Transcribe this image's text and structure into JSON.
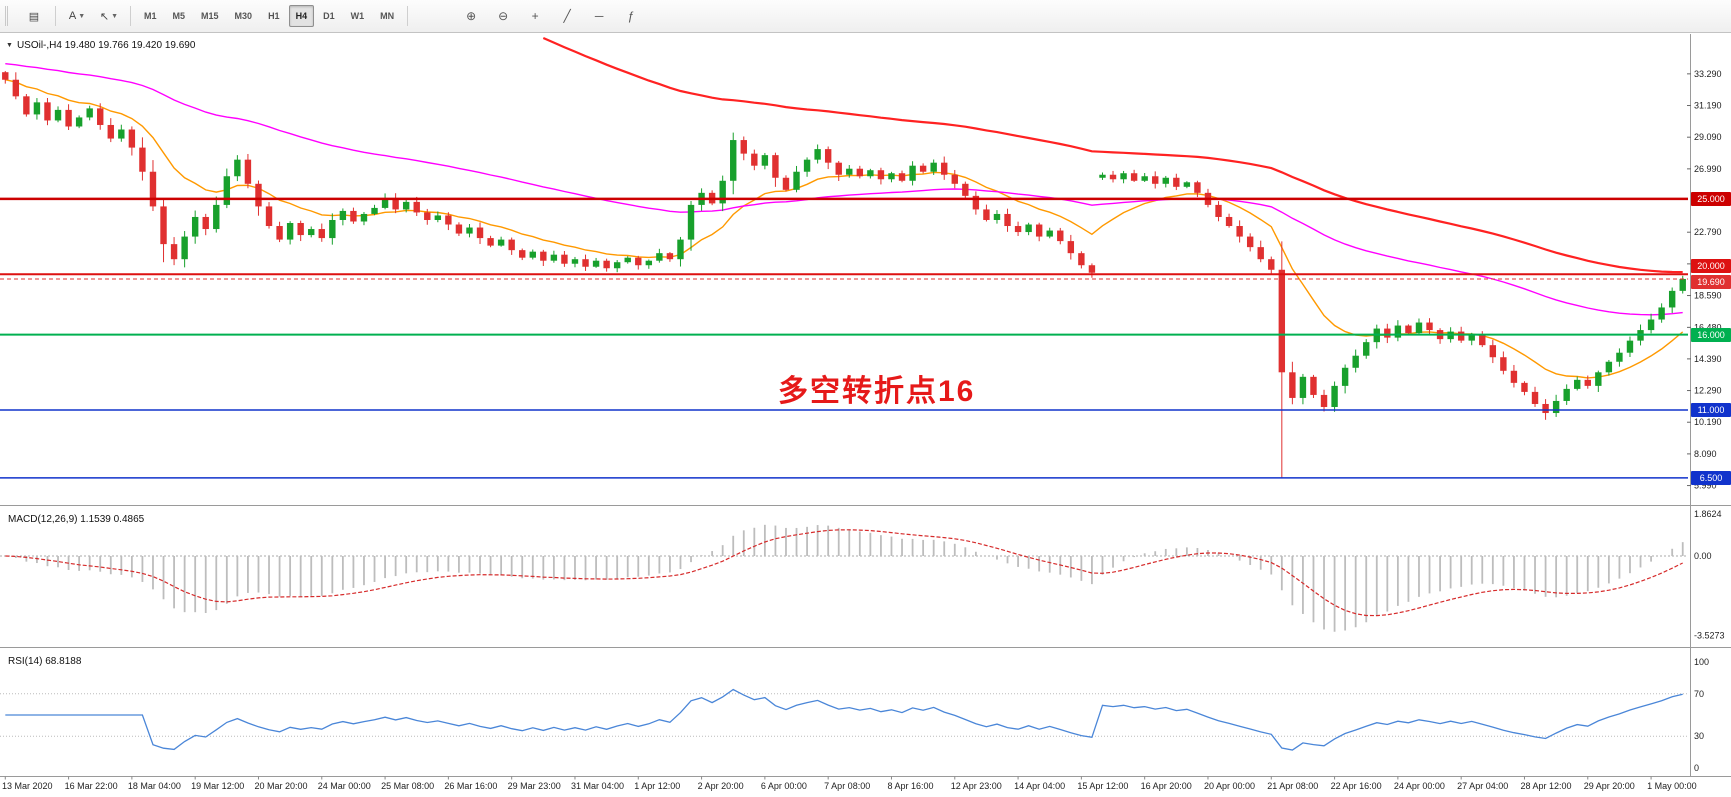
{
  "toolbar": {
    "text_tool_label": "A",
    "timeframes": [
      "M1",
      "M5",
      "M15",
      "M30",
      "H1",
      "H4",
      "D1",
      "W1",
      "MN"
    ],
    "active_timeframe": "H4",
    "icons": [
      {
        "name": "zoom-in-icon",
        "glyph": "⊕"
      },
      {
        "name": "zoom-out-icon",
        "glyph": "⊖"
      },
      {
        "name": "crosshair-icon",
        "glyph": "+"
      },
      {
        "name": "trendline-icon",
        "glyph": "╱"
      },
      {
        "name": "horizontal-line-icon",
        "glyph": "─"
      },
      {
        "name": "indicators-icon",
        "glyph": "ƒ"
      }
    ]
  },
  "chart": {
    "header": "USOil-,H4  19.480 19.766 19.420 19.690",
    "annotation": "多空转折点16",
    "up_color": "#18a02c",
    "down_color": "#e03030",
    "price_ticks": [
      {
        "p": 33.29,
        "t": "33.290"
      },
      {
        "p": 31.19,
        "t": "31.190"
      },
      {
        "p": 29.09,
        "t": "29.090"
      },
      {
        "p": 26.99,
        "t": "26.990"
      },
      {
        "p": 22.79,
        "t": "22.790"
      },
      {
        "p": 20.69,
        "t": "20.690"
      },
      {
        "p": 18.59,
        "t": "18.590"
      },
      {
        "p": 16.48,
        "t": "16.480"
      },
      {
        "p": 14.39,
        "t": "14.390"
      },
      {
        "p": 12.29,
        "t": "12.290"
      },
      {
        "p": 10.19,
        "t": "10.190"
      },
      {
        "p": 8.09,
        "t": "8.090"
      },
      {
        "p": 5.99,
        "t": "5.990"
      }
    ],
    "hlines": [
      {
        "price": 25.0,
        "label": "25.000",
        "color": "#cc0000",
        "width": 2.5
      },
      {
        "price": 20.0,
        "label": "20.000",
        "color": "#dd1111",
        "width": 2
      },
      {
        "price": 16.0,
        "label": "16.000",
        "color": "#00b050",
        "width": 2
      },
      {
        "price": 11.0,
        "label": "11.000",
        "color": "#1133cc",
        "width": 1.5
      },
      {
        "price": 6.5,
        "label": "6.500",
        "color": "#1133cc",
        "width": 1.5
      }
    ],
    "bid_line": {
      "price": 19.69,
      "label": "19.690",
      "color": "#e03030"
    },
    "ma": [
      {
        "name": "ma-fast-orange",
        "period": 13,
        "color": "#ff9900",
        "width": 1.4
      },
      {
        "name": "ma-mid-magenta",
        "period": 60,
        "seed": 34,
        "color": "#ff00ff",
        "width": 1.4
      },
      {
        "name": "ma-slow-red",
        "period": 95,
        "seed": 58,
        "color": "#ff2222",
        "width": 2.2
      }
    ],
    "closes": [
      32.9,
      31.8,
      30.6,
      31.4,
      30.2,
      30.9,
      29.8,
      30.4,
      31.0,
      29.9,
      29.0,
      29.6,
      28.4,
      26.8,
      24.5,
      22.0,
      21.0,
      22.5,
      23.8,
      23.0,
      24.6,
      26.5,
      27.6,
      26.0,
      24.5,
      23.2,
      22.3,
      23.4,
      22.6,
      23.0,
      22.4,
      23.6,
      24.2,
      23.5,
      24.0,
      24.4,
      25.0,
      24.3,
      24.8,
      24.1,
      23.6,
      23.9,
      23.3,
      22.7,
      23.1,
      22.4,
      21.9,
      22.3,
      21.6,
      21.1,
      21.5,
      20.9,
      21.3,
      20.7,
      21.0,
      20.5,
      20.9,
      20.4,
      20.8,
      21.1,
      20.6,
      20.9,
      21.4,
      21.0,
      22.3,
      24.6,
      25.4,
      24.7,
      26.2,
      28.9,
      28.0,
      27.2,
      27.9,
      26.4,
      25.6,
      26.8,
      27.6,
      28.3,
      27.4,
      26.6,
      27.0,
      26.5,
      26.9,
      26.3,
      26.7,
      26.2,
      27.2,
      26.8,
      27.4,
      26.6,
      26.0,
      25.2,
      24.3,
      23.6,
      24.0,
      23.2,
      22.8,
      23.3,
      22.5,
      22.9,
      22.2,
      21.4,
      20.6,
      20.1,
      26.6,
      26.3,
      26.7,
      26.2,
      26.5,
      26.0,
      26.4,
      25.8,
      26.1,
      25.4,
      24.6,
      23.8,
      23.2,
      22.5,
      21.8,
      21.0,
      20.3,
      13.5,
      11.8,
      13.2,
      12.0,
      11.2,
      12.6,
      13.8,
      14.6,
      15.5,
      16.4,
      15.8,
      16.6,
      16.1,
      16.8,
      16.3,
      15.7,
      16.2,
      15.6,
      16.0,
      15.3,
      14.5,
      13.6,
      12.8,
      12.2,
      11.4,
      10.8,
      11.6,
      12.4,
      13.0,
      12.6,
      13.5,
      14.2,
      14.8,
      15.6,
      16.3,
      17.0,
      17.8,
      18.9,
      19.69
    ],
    "open_overrides": {
      "104": 26.4
    },
    "wick_overrides": {
      "15": {
        "low": 20.8
      },
      "22": {
        "high": 27.9
      },
      "121": {
        "low": 6.5
      },
      "125": {
        "low": 10.9
      },
      "146": {
        "low": 10.35
      }
    }
  },
  "macd": {
    "label": "MACD(12,26,9) 1.1539 0.4865",
    "fast": 12,
    "slow": 26,
    "signal": 9,
    "axis": [
      "1.8624",
      "0.00",
      "-3.5273"
    ],
    "hist_color": "#bdbdbd",
    "signal_color": "#d62b2b"
  },
  "rsi": {
    "label": "RSI(14) 68.8188",
    "period": 14,
    "axis": [
      {
        "v": 100,
        "t": "100"
      },
      {
        "v": 70,
        "t": "70"
      },
      {
        "v": 30,
        "t": "30"
      },
      {
        "v": 0,
        "t": "0"
      }
    ],
    "levels": [
      70,
      30
    ],
    "color": "#4a86d8"
  },
  "time_axis": {
    "labels": [
      "13 Mar 2020",
      "16 Mar 22:00",
      "18 Mar 04:00",
      "19 Mar 12:00",
      "20 Mar 20:00",
      "24 Mar 00:00",
      "25 Mar 08:00",
      "26 Mar 16:00",
      "29 Mar 23:00",
      "31 Mar 04:00",
      "1 Apr 12:00",
      "2 Apr 20:00",
      "6 Apr 00:00",
      "7 Apr 08:00",
      "8 Apr 16:00",
      "12 Apr 23:00",
      "14 Apr 04:00",
      "15 Apr 12:00",
      "16 Apr 20:00",
      "20 Apr 00:00",
      "21 Apr 08:00",
      "22 Apr 16:00",
      "24 Apr 00:00",
      "27 Apr 04:00",
      "28 Apr 12:00",
      "29 Apr 20:00",
      "1 May 00:00"
    ]
  }
}
